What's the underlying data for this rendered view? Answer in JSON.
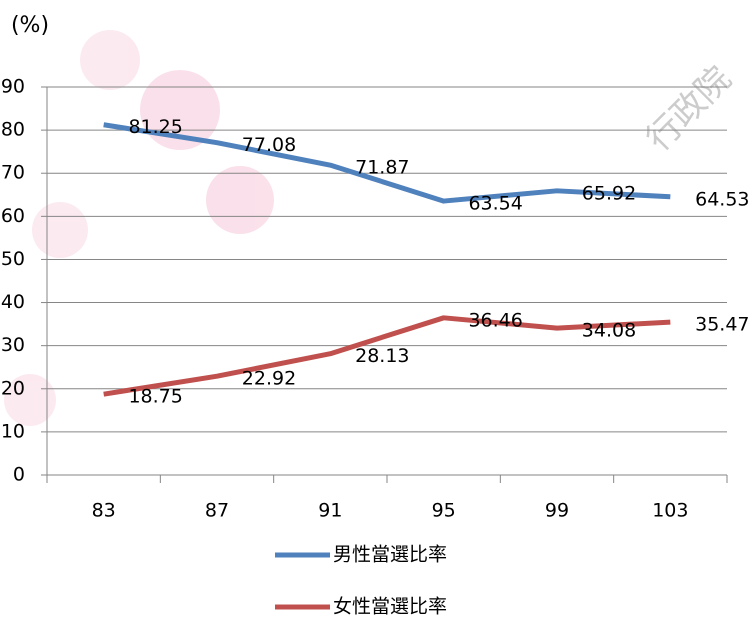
{
  "chart_data": {
    "type": "line",
    "y_label": "(%)",
    "watermark": "行政院",
    "categories": [
      "83",
      "87",
      "91",
      "95",
      "99",
      "103"
    ],
    "series": [
      {
        "name": "男性當選比率",
        "color": "#4f81bd",
        "values": [
          81.25,
          77.08,
          71.87,
          63.54,
          65.92,
          64.53
        ]
      },
      {
        "name": "女性當選比率",
        "color": "#c0504d",
        "values": [
          18.75,
          22.92,
          28.13,
          36.46,
          34.08,
          35.47
        ]
      }
    ],
    "ylim": [
      0,
      90
    ],
    "yticks": [
      0,
      10,
      20,
      30,
      40,
      50,
      60,
      70,
      80,
      90
    ],
    "grid": true,
    "legend": "bottom"
  }
}
